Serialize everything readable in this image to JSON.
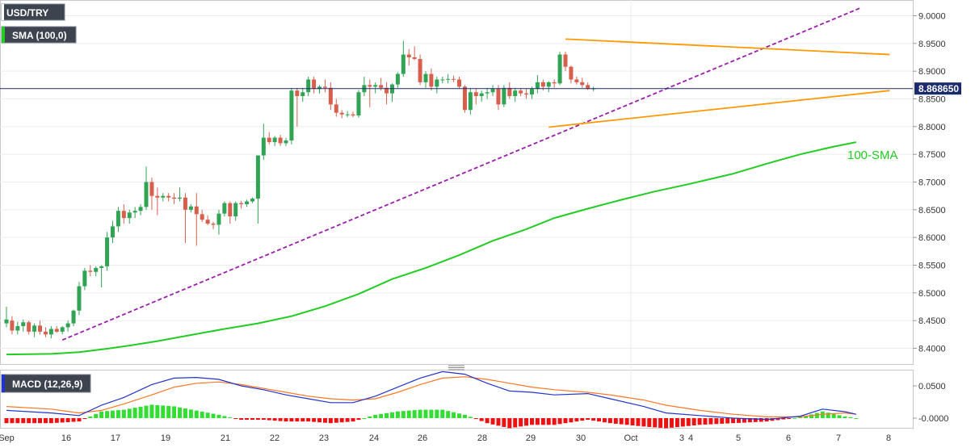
{
  "header": {
    "symbol": "USD/TRY",
    "indicator": "SMA (100,0)",
    "macd_label": "MACD (12,26,9)",
    "sma_annotation": "100-SMA"
  },
  "price_axis": {
    "ticks": [
      "9.0000",
      "8.9500",
      "8.9000",
      "8.8500",
      "8.8000",
      "8.7500",
      "8.7000",
      "8.6500",
      "8.6000",
      "8.5500",
      "8.5000",
      "8.4500",
      "8.4000"
    ],
    "current_price": "8.868650"
  },
  "macd_axis": {
    "ticks": [
      "0.0500",
      "-0.0000"
    ]
  },
  "time_axis": {
    "labels": [
      "Sep",
      "16",
      "17",
      "19",
      "21",
      "22",
      "23",
      "24",
      "26",
      "28",
      "29",
      "30",
      "Oct",
      "3",
      "4",
      "5",
      "6",
      "7",
      "8"
    ]
  },
  "colors": {
    "up": "#31a354",
    "down": "#d6604d",
    "sma": "#22cc22",
    "trend_purple": "#9a1faa",
    "trend_orange": "#ff9900",
    "macd_line": "#2233cc",
    "signal_line": "#ff7722",
    "hist_pos": "#33dd33",
    "hist_neg": "#ee1111"
  },
  "chart_data": {
    "type": "candlestick",
    "title": "USD/TRY",
    "ylim": [
      8.38,
      9.02
    ],
    "candles": [
      [
        8.445,
        8.475,
        8.438,
        8.452
      ],
      [
        8.45,
        8.458,
        8.425,
        8.432
      ],
      [
        8.432,
        8.448,
        8.425,
        8.44
      ],
      [
        8.44,
        8.452,
        8.43,
        8.447
      ],
      [
        8.447,
        8.45,
        8.425,
        8.43
      ],
      [
        8.43,
        8.445,
        8.42,
        8.441
      ],
      [
        8.441,
        8.45,
        8.425,
        8.43
      ],
      [
        8.43,
        8.438,
        8.42,
        8.425
      ],
      [
        8.425,
        8.44,
        8.418,
        8.435
      ],
      [
        8.435,
        8.44,
        8.428,
        8.43
      ],
      [
        8.43,
        8.44,
        8.425,
        8.438
      ],
      [
        8.438,
        8.45,
        8.43,
        8.445
      ],
      [
        8.445,
        8.47,
        8.44,
        8.468
      ],
      [
        8.468,
        8.52,
        8.46,
        8.512
      ],
      [
        8.512,
        8.545,
        8.505,
        8.54
      ],
      [
        8.54,
        8.55,
        8.53,
        8.538
      ],
      [
        8.538,
        8.548,
        8.53,
        8.545
      ],
      [
        8.545,
        8.55,
        8.51,
        8.548
      ],
      [
        8.548,
        8.61,
        8.54,
        8.6
      ],
      [
        8.6,
        8.63,
        8.59,
        8.62
      ],
      [
        8.62,
        8.655,
        8.61,
        8.648
      ],
      [
        8.648,
        8.66,
        8.625,
        8.635
      ],
      [
        8.635,
        8.65,
        8.625,
        8.645
      ],
      [
        8.645,
        8.655,
        8.635,
        8.648
      ],
      [
        8.648,
        8.66,
        8.64,
        8.655
      ],
      [
        8.655,
        8.728,
        8.65,
        8.7
      ],
      [
        8.7,
        8.708,
        8.65,
        8.675
      ],
      [
        8.675,
        8.69,
        8.64,
        8.672
      ],
      [
        8.672,
        8.68,
        8.665,
        8.675
      ],
      [
        8.675,
        8.68,
        8.665,
        8.672
      ],
      [
        8.672,
        8.68,
        8.66,
        8.67
      ],
      [
        8.67,
        8.69,
        8.665,
        8.672
      ],
      [
        8.672,
        8.68,
        8.59,
        8.65
      ],
      [
        8.65,
        8.66,
        8.645,
        8.656
      ],
      [
        8.656,
        8.68,
        8.585,
        8.642
      ],
      [
        8.642,
        8.65,
        8.628,
        8.632
      ],
      [
        8.632,
        8.64,
        8.622,
        8.625
      ],
      [
        8.625,
        8.628,
        8.615,
        8.623
      ],
      [
        8.623,
        8.65,
        8.605,
        8.643
      ],
      [
        8.643,
        8.665,
        8.638,
        8.662
      ],
      [
        8.662,
        8.665,
        8.625,
        8.638
      ],
      [
        8.638,
        8.665,
        8.63,
        8.662
      ],
      [
        8.662,
        8.666,
        8.652,
        8.66
      ],
      [
        8.66,
        8.668,
        8.655,
        8.665
      ],
      [
        8.665,
        8.672,
        8.662,
        8.67
      ],
      [
        8.67,
        8.748,
        8.625,
        8.748
      ],
      [
        8.748,
        8.805,
        8.74,
        8.78
      ],
      [
        8.78,
        8.79,
        8.768,
        8.772
      ],
      [
        8.772,
        8.783,
        8.765,
        8.78
      ],
      [
        8.78,
        8.785,
        8.765,
        8.77
      ],
      [
        8.77,
        8.78,
        8.765,
        8.775
      ],
      [
        8.775,
        8.87,
        8.768,
        8.865
      ],
      [
        8.865,
        8.87,
        8.8,
        8.855
      ],
      [
        8.855,
        8.87,
        8.845,
        8.862
      ],
      [
        8.862,
        8.89,
        8.855,
        8.885
      ],
      [
        8.885,
        8.89,
        8.86,
        8.868
      ],
      [
        8.868,
        8.875,
        8.86,
        8.872
      ],
      [
        8.872,
        8.885,
        8.862,
        8.87
      ],
      [
        8.87,
        8.88,
        8.83,
        8.84
      ],
      [
        8.84,
        8.85,
        8.818,
        8.825
      ],
      [
        8.825,
        8.83,
        8.815,
        8.822
      ],
      [
        8.822,
        8.828,
        8.817,
        8.822
      ],
      [
        8.822,
        8.827,
        8.817,
        8.82
      ],
      [
        8.82,
        8.866,
        8.816,
        8.862
      ],
      [
        8.862,
        8.89,
        8.855,
        8.875
      ],
      [
        8.875,
        8.885,
        8.835,
        8.872
      ],
      [
        8.872,
        8.88,
        8.86,
        8.875
      ],
      [
        8.875,
        8.888,
        8.865,
        8.87
      ],
      [
        8.87,
        8.88,
        8.84,
        8.86
      ],
      [
        8.86,
        8.878,
        8.845,
        8.876
      ],
      [
        8.876,
        8.898,
        8.87,
        8.895
      ],
      [
        8.895,
        8.955,
        8.89,
        8.93
      ],
      [
        8.93,
        8.94,
        8.91,
        8.925
      ],
      [
        8.925,
        8.945,
        8.92,
        8.922
      ],
      [
        8.922,
        8.93,
        8.875,
        8.88
      ],
      [
        8.88,
        8.9,
        8.87,
        8.895
      ],
      [
        8.895,
        8.905,
        8.865,
        8.872
      ],
      [
        8.872,
        8.89,
        8.86,
        8.885
      ],
      [
        8.885,
        8.89,
        8.878,
        8.885
      ],
      [
        8.885,
        8.895,
        8.878,
        8.886
      ],
      [
        8.886,
        8.892,
        8.88,
        8.885
      ],
      [
        8.885,
        8.89,
        8.868,
        8.872
      ],
      [
        8.872,
        8.875,
        8.825,
        8.83
      ],
      [
        8.83,
        8.87,
        8.822,
        8.862
      ],
      [
        8.862,
        8.868,
        8.84,
        8.855
      ],
      [
        8.855,
        8.865,
        8.845,
        8.86
      ],
      [
        8.86,
        8.87,
        8.85,
        8.862
      ],
      [
        8.862,
        8.875,
        8.855,
        8.868
      ],
      [
        8.868,
        8.875,
        8.83,
        8.84
      ],
      [
        8.84,
        8.875,
        8.835,
        8.87
      ],
      [
        8.87,
        8.88,
        8.85,
        8.855
      ],
      [
        8.855,
        8.87,
        8.845,
        8.865
      ],
      [
        8.865,
        8.87,
        8.855,
        8.86
      ],
      [
        8.86,
        8.868,
        8.85,
        8.858
      ],
      [
        8.858,
        8.872,
        8.85,
        8.868
      ],
      [
        8.868,
        8.893,
        8.86,
        8.88
      ],
      [
        8.88,
        8.885,
        8.865,
        8.872
      ],
      [
        8.872,
        8.882,
        8.862,
        8.88
      ],
      [
        8.88,
        8.885,
        8.87,
        8.878
      ],
      [
        8.878,
        8.935,
        8.875,
        8.93
      ],
      [
        8.93,
        8.935,
        8.9,
        8.908
      ],
      [
        8.908,
        8.91,
        8.878,
        8.885
      ],
      [
        8.885,
        8.89,
        8.876,
        8.88
      ],
      [
        8.88,
        8.888,
        8.87,
        8.875
      ],
      [
        8.875,
        8.88,
        8.866,
        8.868
      ],
      [
        8.868,
        8.872,
        8.864,
        8.8687
      ]
    ],
    "sma_100": [
      [
        0,
        8.389
      ],
      [
        8,
        8.39
      ],
      [
        13,
        8.393
      ],
      [
        17,
        8.398
      ],
      [
        22,
        8.405
      ],
      [
        27,
        8.413
      ],
      [
        33,
        8.424
      ],
      [
        39,
        8.435
      ],
      [
        45,
        8.445
      ],
      [
        51,
        8.458
      ],
      [
        57,
        8.476
      ],
      [
        63,
        8.498
      ],
      [
        69,
        8.525
      ],
      [
        75,
        8.545
      ],
      [
        81,
        8.568
      ],
      [
        87,
        8.594
      ],
      [
        93,
        8.615
      ],
      [
        98,
        8.635
      ],
      [
        104,
        8.652
      ],
      [
        110,
        8.668
      ],
      [
        116,
        8.683
      ],
      [
        122,
        8.696
      ],
      [
        130,
        8.715
      ],
      [
        136,
        8.733
      ],
      [
        142,
        8.75
      ],
      [
        148,
        8.764
      ],
      [
        152,
        8.772
      ]
    ],
    "trendlines": [
      {
        "color": "purple",
        "dashed": true,
        "from": [
          10,
          8.415
        ],
        "to": [
          153,
          9.015
        ]
      },
      {
        "color": "orange",
        "dashed": false,
        "from": [
          100,
          8.958
        ],
        "to": [
          158,
          8.93
        ]
      },
      {
        "color": "orange",
        "dashed": false,
        "from": [
          97,
          8.799
        ],
        "to": [
          158,
          8.865
        ]
      }
    ],
    "macd": {
      "ylim": [
        -0.018,
        0.082
      ],
      "macd_line": [
        [
          0,
          0.012
        ],
        [
          8,
          0.008
        ],
        [
          13,
          0.004
        ],
        [
          17,
          0.02
        ],
        [
          21,
          0.032
        ],
        [
          26,
          0.052
        ],
        [
          30,
          0.062
        ],
        [
          34,
          0.063
        ],
        [
          38,
          0.06
        ],
        [
          42,
          0.05
        ],
        [
          46,
          0.044
        ],
        [
          50,
          0.036
        ],
        [
          54,
          0.03
        ],
        [
          58,
          0.024
        ],
        [
          62,
          0.024
        ],
        [
          66,
          0.034
        ],
        [
          70,
          0.048
        ],
        [
          74,
          0.062
        ],
        [
          78,
          0.072
        ],
        [
          82,
          0.068
        ],
        [
          86,
          0.054
        ],
        [
          90,
          0.042
        ],
        [
          94,
          0.04
        ],
        [
          98,
          0.036
        ],
        [
          104,
          0.038
        ],
        [
          108,
          0.03
        ],
        [
          114,
          0.018
        ],
        [
          118,
          0.008
        ],
        [
          124,
          0.004
        ],
        [
          130,
          0.0
        ],
        [
          136,
          -0.002
        ],
        [
          142,
          0.003
        ],
        [
          146,
          0.014
        ],
        [
          150,
          0.01
        ],
        [
          152,
          0.006
        ]
      ],
      "signal_line": [
        [
          0,
          0.018
        ],
        [
          8,
          0.014
        ],
        [
          13,
          0.008
        ],
        [
          17,
          0.012
        ],
        [
          21,
          0.022
        ],
        [
          26,
          0.036
        ],
        [
          30,
          0.048
        ],
        [
          34,
          0.054
        ],
        [
          38,
          0.056
        ],
        [
          42,
          0.052
        ],
        [
          46,
          0.046
        ],
        [
          50,
          0.04
        ],
        [
          54,
          0.034
        ],
        [
          58,
          0.03
        ],
        [
          62,
          0.028
        ],
        [
          66,
          0.03
        ],
        [
          70,
          0.04
        ],
        [
          74,
          0.052
        ],
        [
          78,
          0.062
        ],
        [
          82,
          0.064
        ],
        [
          86,
          0.06
        ],
        [
          90,
          0.054
        ],
        [
          94,
          0.048
        ],
        [
          98,
          0.044
        ],
        [
          104,
          0.04
        ],
        [
          108,
          0.036
        ],
        [
          114,
          0.028
        ],
        [
          118,
          0.02
        ],
        [
          124,
          0.012
        ],
        [
          130,
          0.006
        ],
        [
          136,
          0.002
        ],
        [
          142,
          0.002
        ],
        [
          146,
          0.006
        ],
        [
          150,
          0.008
        ],
        [
          152,
          0.006
        ]
      ]
    }
  }
}
